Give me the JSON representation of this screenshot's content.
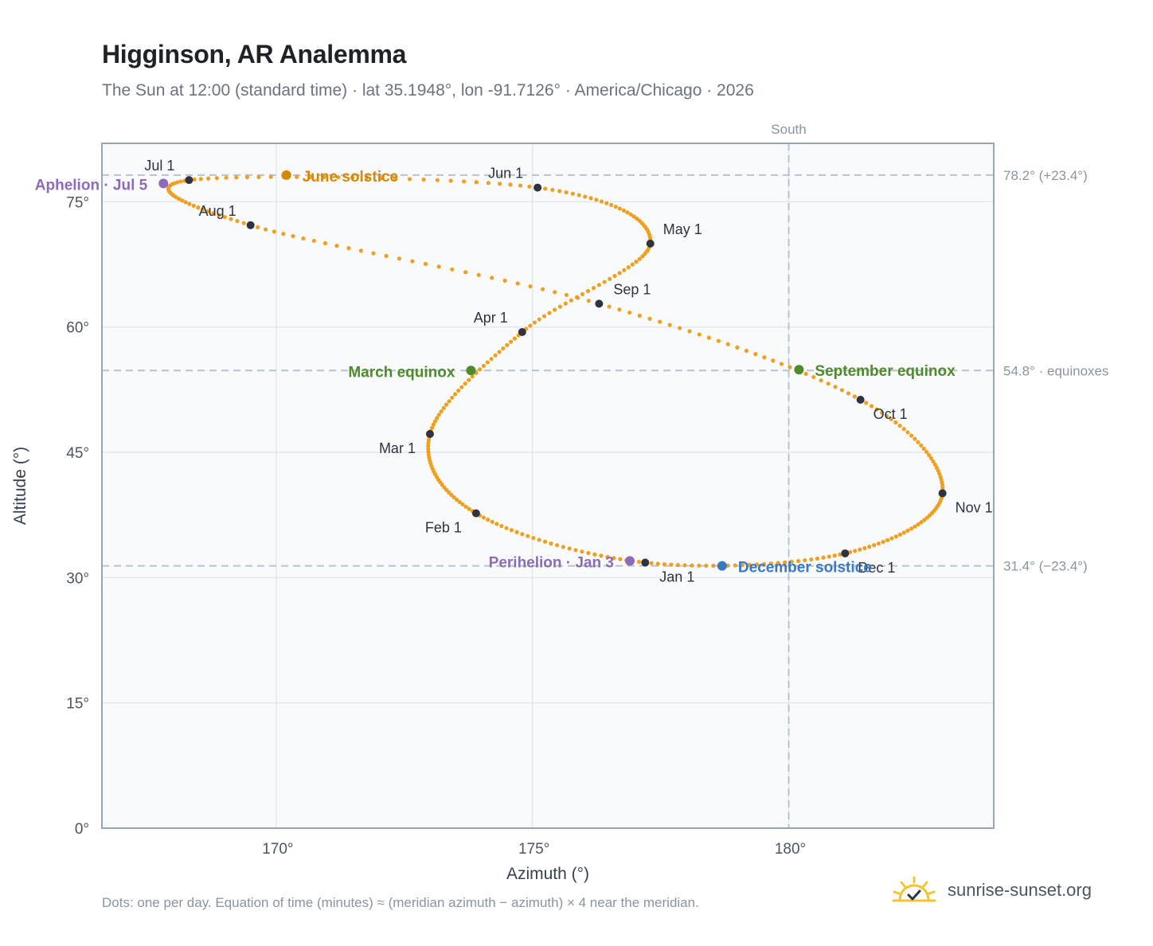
{
  "header": {
    "title": "Higginson, AR Analemma",
    "subtitle": "The Sun at 12:00 (standard time) · lat 35.1948°, lon -91.7126° · America/Chicago · 2026"
  },
  "footer": {
    "note": "Dots: one per day. Equation of time (minutes) ≈ (meridian azimuth − azimuth) × 4 near the meridian.",
    "brand": "sunrise-sunset.org"
  },
  "colors": {
    "path": "#f0a020",
    "month_dot": "#2d3340",
    "equinox": "#4f8a2b",
    "june_solstice": "#d48806",
    "december_solstice": "#3a78c0",
    "apsis": "#8e6bb8",
    "plot_bg": "#f8fafc",
    "grid": "#e3e8ee",
    "ref_line": "#b7c3cf"
  },
  "chart_data": {
    "type": "scatter",
    "title": "Higginson, AR Analemma",
    "xlabel": "Azimuth (°)",
    "ylabel": "Altitude (°)",
    "xlim": [
      166.6,
      184.0
    ],
    "ylim": [
      0,
      82
    ],
    "x_ticks": [
      170,
      175,
      180
    ],
    "x_tick_labels": [
      "170°",
      "175°",
      "180°"
    ],
    "y_ticks": [
      0,
      15,
      30,
      45,
      60,
      75
    ],
    "y_tick_labels": [
      "0°",
      "15°",
      "30°",
      "45°",
      "60°",
      "75°"
    ],
    "grid": true,
    "meridian": {
      "azimuth": 180,
      "label": "South"
    },
    "reference_lines": [
      {
        "altitude": 78.2,
        "label": "78.2° (+23.4°)"
      },
      {
        "altitude": 54.8,
        "label": "54.8° · equinoxes"
      },
      {
        "altitude": 31.4,
        "label": "31.4° (−23.4°)"
      }
    ],
    "month_points": [
      {
        "label": "Jan 1",
        "az": 177.2,
        "alt": 31.8
      },
      {
        "label": "Feb 1",
        "az": 173.9,
        "alt": 37.7
      },
      {
        "label": "Mar 1",
        "az": 173.0,
        "alt": 47.2
      },
      {
        "label": "Apr 1",
        "az": 174.8,
        "alt": 59.4
      },
      {
        "label": "May 1",
        "az": 177.3,
        "alt": 70.0
      },
      {
        "label": "Jun 1",
        "az": 175.1,
        "alt": 76.7
      },
      {
        "label": "Jul 1",
        "az": 168.3,
        "alt": 77.6
      },
      {
        "label": "Aug 1",
        "az": 169.5,
        "alt": 72.2
      },
      {
        "label": "Sep 1",
        "az": 176.3,
        "alt": 62.8
      },
      {
        "label": "Oct 1",
        "az": 181.4,
        "alt": 51.3
      },
      {
        "label": "Nov 1",
        "az": 183.0,
        "alt": 40.1
      },
      {
        "label": "Dec 1",
        "az": 181.1,
        "alt": 32.9
      }
    ],
    "events": [
      {
        "label": "March equinox",
        "az": 173.8,
        "alt": 54.8,
        "color": "#4f8a2b"
      },
      {
        "label": "June solstice",
        "az": 170.2,
        "alt": 78.2,
        "color": "#d48806"
      },
      {
        "label": "September equinox",
        "az": 180.2,
        "alt": 54.9,
        "color": "#4f8a2b"
      },
      {
        "label": "December solstice",
        "az": 178.7,
        "alt": 31.4,
        "color": "#3a78c0"
      },
      {
        "label": "Aphelion · Jul 5",
        "az": 167.8,
        "alt": 77.2,
        "color": "#8e6bb8"
      },
      {
        "label": "Perihelion · Jan 3",
        "az": 176.9,
        "alt": 32.0,
        "color": "#8e6bb8"
      }
    ]
  }
}
